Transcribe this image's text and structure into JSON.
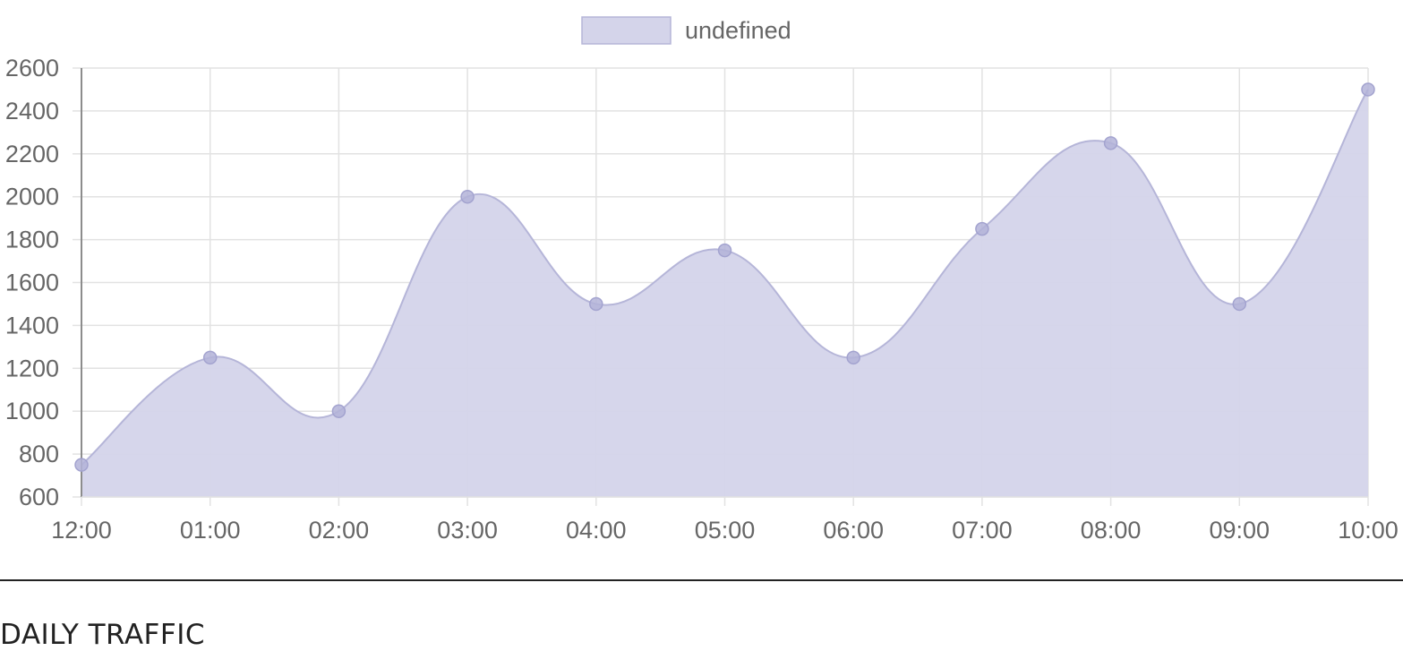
{
  "chart_data": {
    "type": "area",
    "legend": {
      "label": "undefined",
      "placement": "top-center"
    },
    "categories": [
      "12:00",
      "01:00",
      "02:00",
      "03:00",
      "04:00",
      "05:00",
      "06:00",
      "07:00",
      "08:00",
      "09:00",
      "10:00"
    ],
    "series": [
      {
        "name": "undefined",
        "values": [
          750,
          1250,
          1000,
          2000,
          1500,
          1750,
          1250,
          1850,
          2250,
          1500,
          2500
        ]
      }
    ],
    "yticks": [
      2600,
      2400,
      2200,
      2000,
      1800,
      1600,
      1400,
      1200,
      1000,
      800,
      600
    ],
    "ylim": [
      600,
      2600
    ],
    "grid": true,
    "colors": {
      "fill": "#d4d4ea",
      "line": "#b5b5d8",
      "point": "#b3b3d8",
      "grid": "#e2e2e2",
      "axis": "#8c8c8c"
    }
  },
  "section": {
    "title": "DAILY TRAFFIC"
  }
}
